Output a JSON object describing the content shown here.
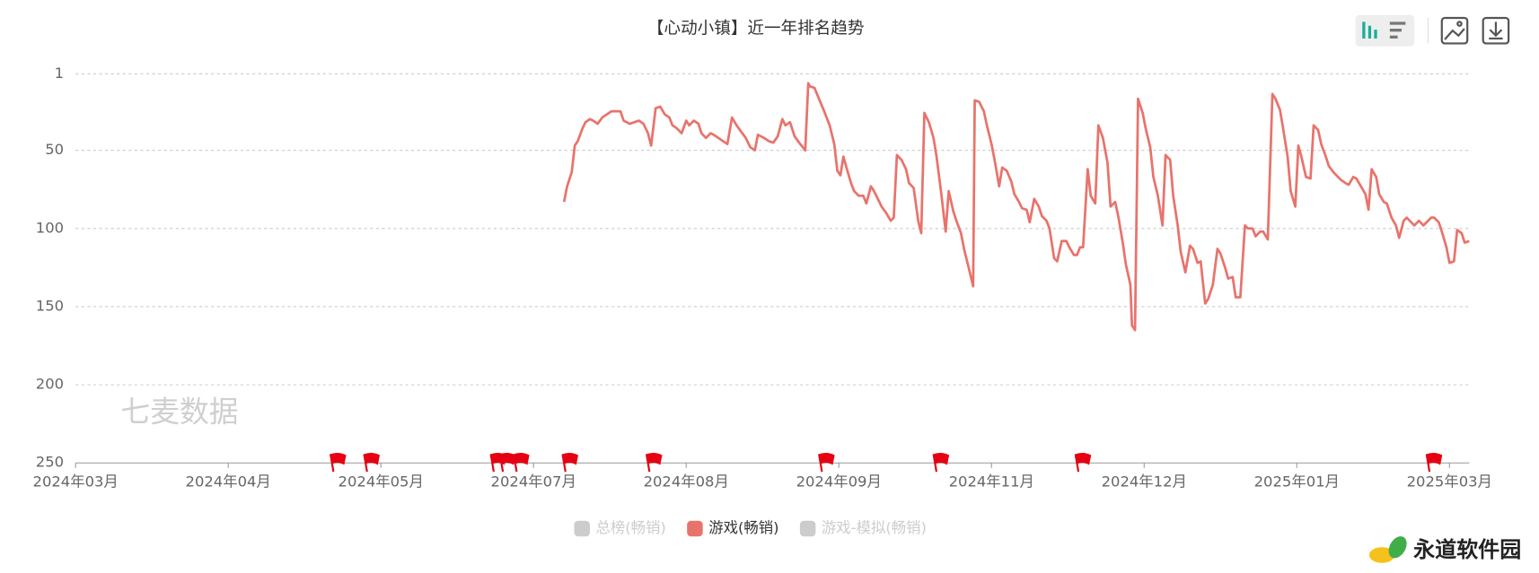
{
  "chart_data": {
    "type": "line",
    "title": "【心动小镇】近一年排名趋势",
    "watermark": "七麦数据",
    "brand": "永道软件园",
    "ylim": [
      1,
      250
    ],
    "y_inverted": true,
    "yticks": [
      1,
      50,
      100,
      150,
      200,
      250
    ],
    "grid": true,
    "xlim": [
      0,
      91.3
    ],
    "xticks": [
      {
        "value": 0,
        "label": "2024年03月"
      },
      {
        "value": 10,
        "label": "2024年04月"
      },
      {
        "value": 20,
        "label": "2024年05月"
      },
      {
        "value": 30,
        "label": "2024年07月"
      },
      {
        "value": 40,
        "label": "2024年08月"
      },
      {
        "value": 50,
        "label": "2024年09月"
      },
      {
        "value": 60,
        "label": "2024年11月"
      },
      {
        "value": 70,
        "label": "2024年12月"
      },
      {
        "value": 80,
        "label": "2025年01月"
      },
      {
        "value": 90,
        "label": "2025年03月"
      }
    ],
    "x": [
      32.0,
      32.2,
      32.5,
      32.7,
      32.9,
      33.2,
      33.4,
      33.7,
      33.9,
      34.2,
      34.5,
      34.8,
      35.1,
      35.4,
      35.7,
      35.9,
      36.3,
      36.6,
      36.9,
      37.2,
      37.5,
      37.7,
      38.0,
      38.3,
      38.6,
      38.9,
      39.1,
      39.4,
      39.7,
      40.0,
      40.2,
      40.5,
      40.8,
      41.0,
      41.3,
      41.6,
      41.8,
      42.1,
      42.4,
      42.7,
      43.0,
      43.3,
      43.6,
      43.9,
      44.2,
      44.5,
      44.7,
      45.1,
      45.4,
      45.7,
      46.0,
      46.3,
      46.5,
      46.8,
      47.1,
      47.4,
      47.8,
      48.0,
      48.1,
      48.4,
      48.7,
      49.0,
      49.4,
      49.7,
      49.9,
      50.1,
      50.3,
      50.5,
      50.8,
      51.0,
      51.3,
      51.6,
      51.8,
      52.1,
      52.3,
      52.6,
      52.8,
      53.1,
      53.4,
      53.6,
      53.8,
      54.1,
      54.4,
      54.6,
      54.9,
      55.2,
      55.4,
      55.6,
      55.9,
      56.2,
      56.4,
      56.7,
      57.0,
      57.2,
      57.5,
      57.7,
      58.0,
      58.2,
      58.5,
      58.8,
      58.9,
      59.2,
      59.5,
      59.7,
      60.0,
      60.2,
      60.5,
      60.7,
      61.0,
      61.3,
      61.5,
      61.8,
      62.0,
      62.3,
      62.5,
      62.8,
      63.1,
      63.3,
      63.6,
      63.8,
      64.1,
      64.3,
      64.6,
      64.9,
      65.1,
      65.4,
      65.6,
      65.8,
      66.0,
      66.3,
      66.5,
      66.8,
      67.0,
      67.3,
      67.6,
      67.8,
      68.1,
      68.3,
      68.6,
      68.8,
      69.1,
      69.2,
      69.4,
      69.6,
      69.9,
      70.1,
      70.4,
      70.6,
      70.9,
      71.2,
      71.4,
      71.7,
      71.9,
      72.2,
      72.4,
      72.7,
      73.0,
      73.2,
      73.5,
      73.7,
      74.0,
      74.2,
      74.5,
      74.8,
      75.0,
      75.3,
      75.5,
      75.8,
      76.0,
      76.3,
      76.6,
      76.8,
      77.1,
      77.3,
      77.6,
      77.8,
      78.1,
      78.4,
      78.6,
      78.9,
      79.1,
      79.4,
      79.6,
      79.9,
      80.1,
      80.3,
      80.6,
      80.9,
      81.1,
      81.4,
      81.6,
      81.9,
      82.1,
      82.4,
      82.7,
      82.9,
      83.2,
      83.4,
      83.7,
      83.9,
      84.2,
      84.5,
      84.7,
      84.9,
      85.2,
      85.4,
      85.7,
      85.9,
      86.2,
      86.5,
      86.7,
      87.0,
      87.2,
      87.5,
      87.7,
      88.0,
      88.3,
      88.5,
      88.8,
      89.0,
      89.3,
      89.5,
      89.8,
      90.0,
      90.3,
      90.5,
      90.8,
      91.0,
      91.3
    ],
    "series": [
      {
        "name": "总榜(畅销)",
        "color": "#cccccc",
        "hidden": true
      },
      {
        "name": "游戏(畅销)",
        "color": "#e8736c",
        "values": [
          83,
          73,
          64,
          47,
          44,
          36,
          32,
          30,
          31,
          33,
          29,
          27,
          25,
          25,
          25,
          31,
          33,
          32,
          31,
          33,
          39,
          47,
          23,
          22,
          27,
          29,
          34,
          36,
          39,
          31,
          34,
          31,
          33,
          39,
          42,
          39,
          40,
          42,
          44,
          46,
          29,
          34,
          38,
          42,
          48,
          50,
          40,
          42,
          44,
          45,
          41,
          30,
          34,
          32,
          41,
          45,
          50,
          7,
          9,
          10,
          17,
          24,
          34,
          46,
          63,
          66,
          54,
          61,
          71,
          76,
          79,
          79,
          84,
          73,
          76,
          82,
          86,
          90,
          95,
          93,
          53,
          56,
          62,
          71,
          74,
          95,
          103,
          26,
          32,
          42,
          54,
          77,
          102,
          76,
          89,
          95,
          103,
          113,
          125,
          137,
          18,
          19,
          25,
          34,
          46,
          56,
          73,
          61,
          63,
          70,
          78,
          83,
          87,
          88,
          96,
          81,
          86,
          92,
          95,
          100,
          119,
          121,
          108,
          108,
          112,
          117,
          117,
          112,
          112,
          62,
          79,
          84,
          34,
          42,
          58,
          86,
          83,
          92,
          109,
          123,
          136,
          162,
          165,
          17,
          26,
          36,
          48,
          67,
          79,
          98,
          53,
          56,
          79,
          98,
          115,
          128,
          111,
          113,
          122,
          121,
          148,
          145,
          136,
          113,
          116,
          125,
          132,
          131,
          144,
          144,
          98,
          100,
          100,
          105,
          102,
          102,
          107,
          14,
          17,
          24,
          36,
          54,
          76,
          86,
          47,
          54,
          67,
          68,
          34,
          37,
          46,
          54,
          60,
          64,
          67,
          69,
          71,
          72,
          67,
          68,
          73,
          78,
          88,
          62,
          67,
          78,
          83,
          84,
          93,
          98,
          106,
          95,
          93,
          96,
          98,
          95,
          98,
          96,
          93,
          93,
          96,
          102,
          112,
          122,
          121,
          101,
          103,
          109,
          108
        ]
      },
      {
        "name": "游戏-模拟(畅销)",
        "color": "#cccccc",
        "hidden": true
      }
    ],
    "event_flags": {
      "color": "#e60012",
      "x": [
        16.7,
        18.9,
        27.2,
        27.8,
        28.7,
        31.9,
        37.4,
        48.7,
        56.2,
        65.5,
        88.5
      ]
    }
  }
}
